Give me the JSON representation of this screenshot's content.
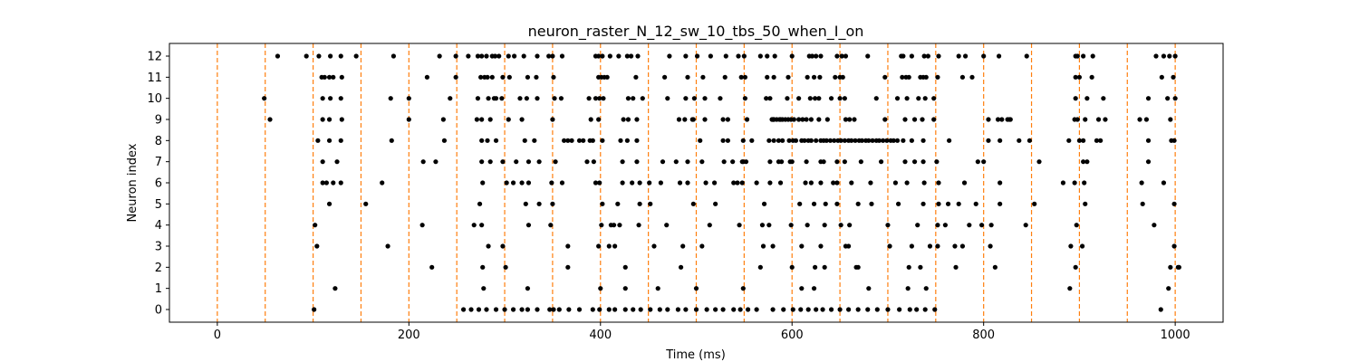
{
  "chart_data": {
    "type": "scatter",
    "title": "neuron_raster_N_12_sw_10_tbs_50_when_I_on",
    "xlabel": "Time (ms)",
    "ylabel": "Neuron index",
    "xlim": [
      -50,
      1050
    ],
    "ylim": [
      -0.6,
      12.6
    ],
    "x_ticks": [
      0,
      200,
      400,
      600,
      800,
      1000
    ],
    "y_ticks": [
      0,
      1,
      2,
      3,
      4,
      5,
      6,
      7,
      8,
      9,
      10,
      11,
      12
    ],
    "marker_color": "#000000",
    "vline_color": "#ff7f0e",
    "vlines": [
      0,
      50,
      100,
      150,
      200,
      250,
      300,
      350,
      400,
      450,
      500,
      550,
      600,
      650,
      700,
      750,
      800,
      850,
      900,
      950,
      1000
    ],
    "series": [
      {
        "values": [
          {
            "neuron": 12,
            "times": [
              63,
              93,
              106,
              118,
              129,
              145,
              184,
              232,
              249,
              262,
              272,
              276,
              281,
              287,
              290,
              294,
              304,
              310,
              320,
              334,
              346,
              350,
              360,
              395,
              398,
              402,
              410,
              419,
              428,
              432,
              439,
              472,
              489,
              501,
              515,
              531,
              544,
              550,
              567,
              574,
              582,
              600,
              618,
              621,
              625,
              630,
              647,
              652,
              656,
              679,
              714,
              716,
              725,
              738,
              742,
              753,
              774,
              781,
              800,
              816,
              845,
              896,
              898,
              904,
              914,
              980,
              988,
              994,
              1000
            ]
          },
          {
            "neuron": 11,
            "times": [
              109,
              112,
              117,
              121,
              130,
              219,
              249,
              275,
              279,
              282,
              287,
              298,
              305,
              324,
              333,
              351,
              398,
              401,
              404,
              407,
              437,
              467,
              491,
              507,
              530,
              547,
              551,
              574,
              581,
              596,
              616,
              623,
              629,
              645,
              650,
              653,
              697,
              715,
              719,
              722,
              734,
              737,
              740,
              752,
              778,
              788,
              896,
              900,
              913,
              986,
              998
            ]
          },
          {
            "neuron": 10,
            "times": [
              49,
              110,
              118,
              129,
              181,
              200,
              243,
              272,
              283,
              289,
              291,
              297,
              316,
              323,
              334,
              352,
              359,
              388,
              395,
              399,
              403,
              429,
              434,
              444,
              470,
              489,
              498,
              509,
              525,
              551,
              573,
              577,
              595,
              607,
              619,
              624,
              628,
              641,
              650,
              655,
              688,
              710,
              720,
              732,
              739,
              748,
              896,
              908,
              925,
              972,
              992,
              1000
            ]
          },
          {
            "neuron": 9,
            "times": [
              55,
              110,
              117,
              130,
              200,
              236,
              271,
              276,
              285,
              304,
              318,
              350,
              390,
              398,
              424,
              429,
              438,
              482,
              488,
              496,
              497,
              509,
              528,
              533,
              553,
              579,
              580,
              580,
              581,
              581,
              584,
              587,
              588,
              590,
              593,
              596,
              599,
              602,
              607,
              611,
              615,
              620,
              628,
              637,
              656,
              660,
              665,
              697,
              718,
              728,
              736,
              748,
              805,
              815,
              819,
              825,
              827,
              828,
              895,
              898,
              906,
              920,
              927,
              963,
              970,
              995
            ]
          },
          {
            "neuron": 8,
            "times": [
              105,
              117,
              129,
              182,
              237,
              276,
              282,
              291,
              321,
              331,
              362,
              366,
              370,
              378,
              382,
              389,
              392,
              402,
              421,
              428,
              438,
              504,
              528,
              533,
              549,
              558,
              576,
              581,
              586,
              590,
              597,
              601,
              604,
              610,
              613,
              617,
              620,
              625,
              630,
              633,
              636,
              640,
              644,
              648,
              651,
              655,
              659,
              662,
              666,
              670,
              673,
              677,
              680,
              684,
              688,
              691,
              695,
              699,
              703,
              706,
              710,
              716,
              725,
              737,
              764,
              805,
              817,
              837,
              848,
              889,
              900,
              904,
              918,
              922,
              972,
              996,
              999
            ]
          },
          {
            "neuron": 7,
            "times": [
              110,
              125,
              215,
              228,
              276,
              285,
              298,
              312,
              325,
              336,
              353,
              386,
              393,
              423,
              438,
              465,
              479,
              491,
              506,
              529,
              538,
              548,
              549,
              552,
              577,
              586,
              589,
              598,
              600,
              615,
              630,
              633,
              647,
              655,
              672,
              693,
              718,
              728,
              737,
              751,
              794,
              800,
              858,
              904,
              908,
              972
            ]
          },
          {
            "neuron": 6,
            "times": [
              110,
              114,
              121,
              129,
              172,
              277,
              302,
              309,
              318,
              325,
              349,
              360,
              395,
              399,
              423,
              433,
              441,
              451,
              463,
              483,
              491,
              510,
              519,
              539,
              543,
              548,
              563,
              577,
              588,
              614,
              620,
              630,
              643,
              647,
              662,
              682,
              708,
              720,
              738,
              753,
              780,
              817,
              883,
              895,
              905,
              965,
              988
            ]
          },
          {
            "neuron": 5,
            "times": [
              117,
              155,
              274,
              322,
              336,
              350,
              402,
              418,
              441,
              452,
              497,
              520,
              571,
              608,
              623,
              635,
              647,
              669,
              683,
              711,
              737,
              753,
              763,
              774,
              792,
              817,
              853,
              906,
              966,
              999
            ]
          },
          {
            "neuron": 4,
            "times": [
              102,
              214,
              268,
              276,
              325,
              348,
              401,
              411,
              414,
              420,
              440,
              469,
              514,
              545,
              569,
              576,
              599,
              616,
              634,
              651,
              660,
              700,
              731,
              752,
              760,
              785,
              798,
              808,
              844,
              897,
              978
            ]
          },
          {
            "neuron": 3,
            "times": [
              104,
              178,
              283,
              298,
              366,
              398,
              409,
              415,
              456,
              486,
              506,
              570,
              580,
              610,
              630,
              656,
              659,
              702,
              725,
              744,
              752,
              770,
              778,
              807,
              891,
              903,
              999
            ]
          },
          {
            "neuron": 2,
            "times": [
              224,
              277,
              301,
              366,
              426,
              484,
              567,
              600,
              624,
              634,
              667,
              669,
              722,
              734,
              771,
              812,
              896,
              995,
              1003,
              1004
            ]
          },
          {
            "neuron": 1,
            "times": [
              123,
              278,
              324,
              400,
              426,
              460,
              500,
              549,
              610,
              623,
              680,
              721,
              740,
              890,
              993
            ]
          },
          {
            "neuron": 0,
            "times": [
              101,
              257,
              265,
              273,
              281,
              291,
              300,
              309,
              318,
              324,
              334,
              347,
              351,
              357,
              367,
              378,
              392,
              399,
              409,
              415,
              426,
              434,
              442,
              452,
              462,
              470,
              481,
              489,
              500,
              511,
              520,
              528,
              539,
              546,
              554,
              563,
              580,
              591,
              601,
              609,
              617,
              625,
              632,
              641,
              650,
              659,
              669,
              679,
              689,
              700,
              712,
              723,
              730,
              739,
              749,
              985
            ]
          }
        ]
      }
    ]
  }
}
